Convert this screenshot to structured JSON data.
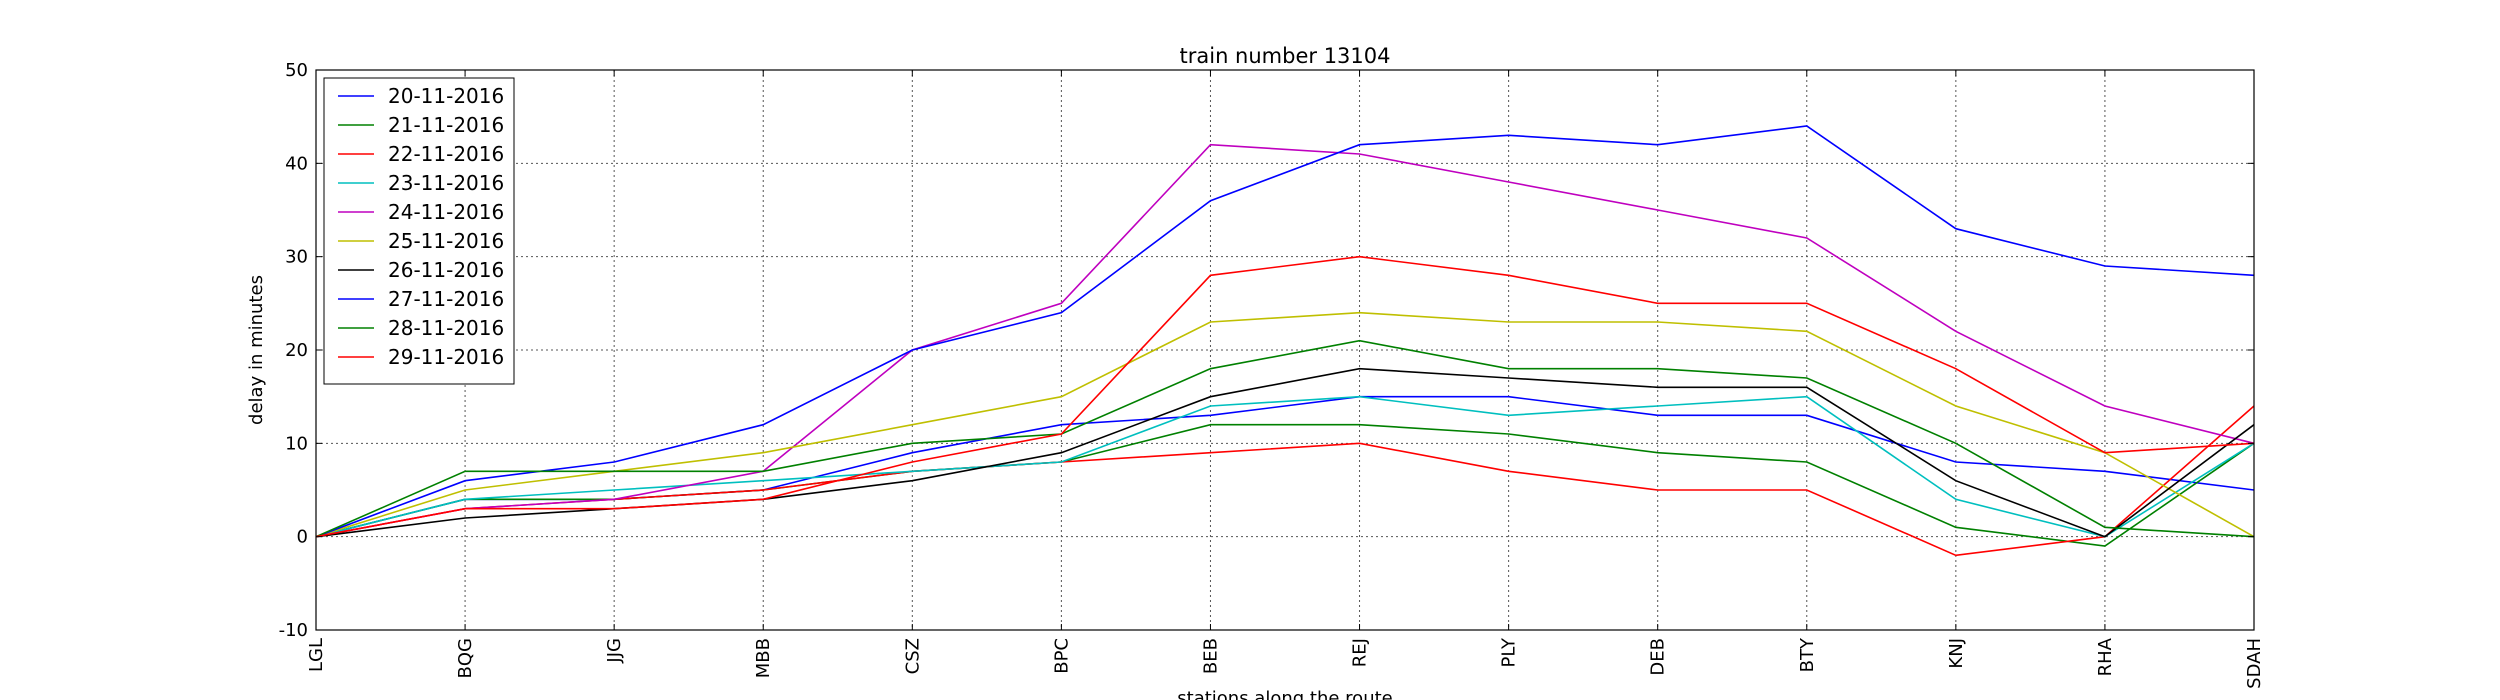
{
  "chart_data": {
    "type": "line",
    "title": "train number 13104",
    "xlabel": "stations along the route",
    "ylabel": "delay in minutes",
    "categories": [
      "LGL",
      "BQG",
      "JJG",
      "MBB",
      "CSZ",
      "BPC",
      "BEB",
      "REJ",
      "PLY",
      "DEB",
      "BTY",
      "KNJ",
      "RHA",
      "SDAH"
    ],
    "ylim": [
      -10,
      50
    ],
    "yticks": [
      -10,
      0,
      10,
      20,
      30,
      40,
      50
    ],
    "grid": true,
    "legend_position": "top-left",
    "series": [
      {
        "name": "20-11-2016",
        "color": "#0000ff",
        "values": [
          0,
          4,
          4,
          5,
          9,
          12,
          13,
          15,
          15,
          13,
          13,
          8,
          7,
          5
        ]
      },
      {
        "name": "21-11-2016",
        "color": "#008000",
        "values": [
          0,
          4,
          4,
          5,
          7,
          8,
          12,
          12,
          11,
          9,
          8,
          1,
          -1,
          10
        ]
      },
      {
        "name": "22-11-2016",
        "color": "#ff0000",
        "values": [
          0,
          3,
          4,
          5,
          7,
          8,
          9,
          10,
          7,
          5,
          5,
          -2,
          0,
          14
        ]
      },
      {
        "name": "23-11-2016",
        "color": "#00bfbf",
        "values": [
          0,
          4,
          5,
          6,
          7,
          8,
          14,
          15,
          13,
          14,
          15,
          4,
          0,
          10
        ]
      },
      {
        "name": "24-11-2016",
        "color": "#bf00bf",
        "values": [
          0,
          3,
          4,
          7,
          20,
          25,
          42,
          41,
          38,
          35,
          32,
          22,
          14,
          10
        ]
      },
      {
        "name": "25-11-2016",
        "color": "#bfbf00",
        "values": [
          0,
          5,
          7,
          9,
          12,
          15,
          23,
          24,
          23,
          23,
          22,
          14,
          9,
          0
        ]
      },
      {
        "name": "26-11-2016",
        "color": "#000000",
        "values": [
          0,
          2,
          3,
          4,
          6,
          9,
          15,
          18,
          17,
          16,
          16,
          6,
          0,
          12
        ]
      },
      {
        "name": "27-11-2016",
        "color": "#0000ff",
        "values": [
          0,
          6,
          8,
          12,
          20,
          24,
          36,
          42,
          43,
          42,
          44,
          33,
          29,
          28
        ]
      },
      {
        "name": "28-11-2016",
        "color": "#008000",
        "values": [
          0,
          7,
          7,
          7,
          10,
          11,
          18,
          21,
          18,
          18,
          17,
          10,
          1,
          0
        ]
      },
      {
        "name": "29-11-2016",
        "color": "#ff0000",
        "values": [
          0,
          3,
          3,
          4,
          8,
          11,
          28,
          30,
          28,
          25,
          25,
          18,
          9,
          10
        ]
      }
    ]
  }
}
